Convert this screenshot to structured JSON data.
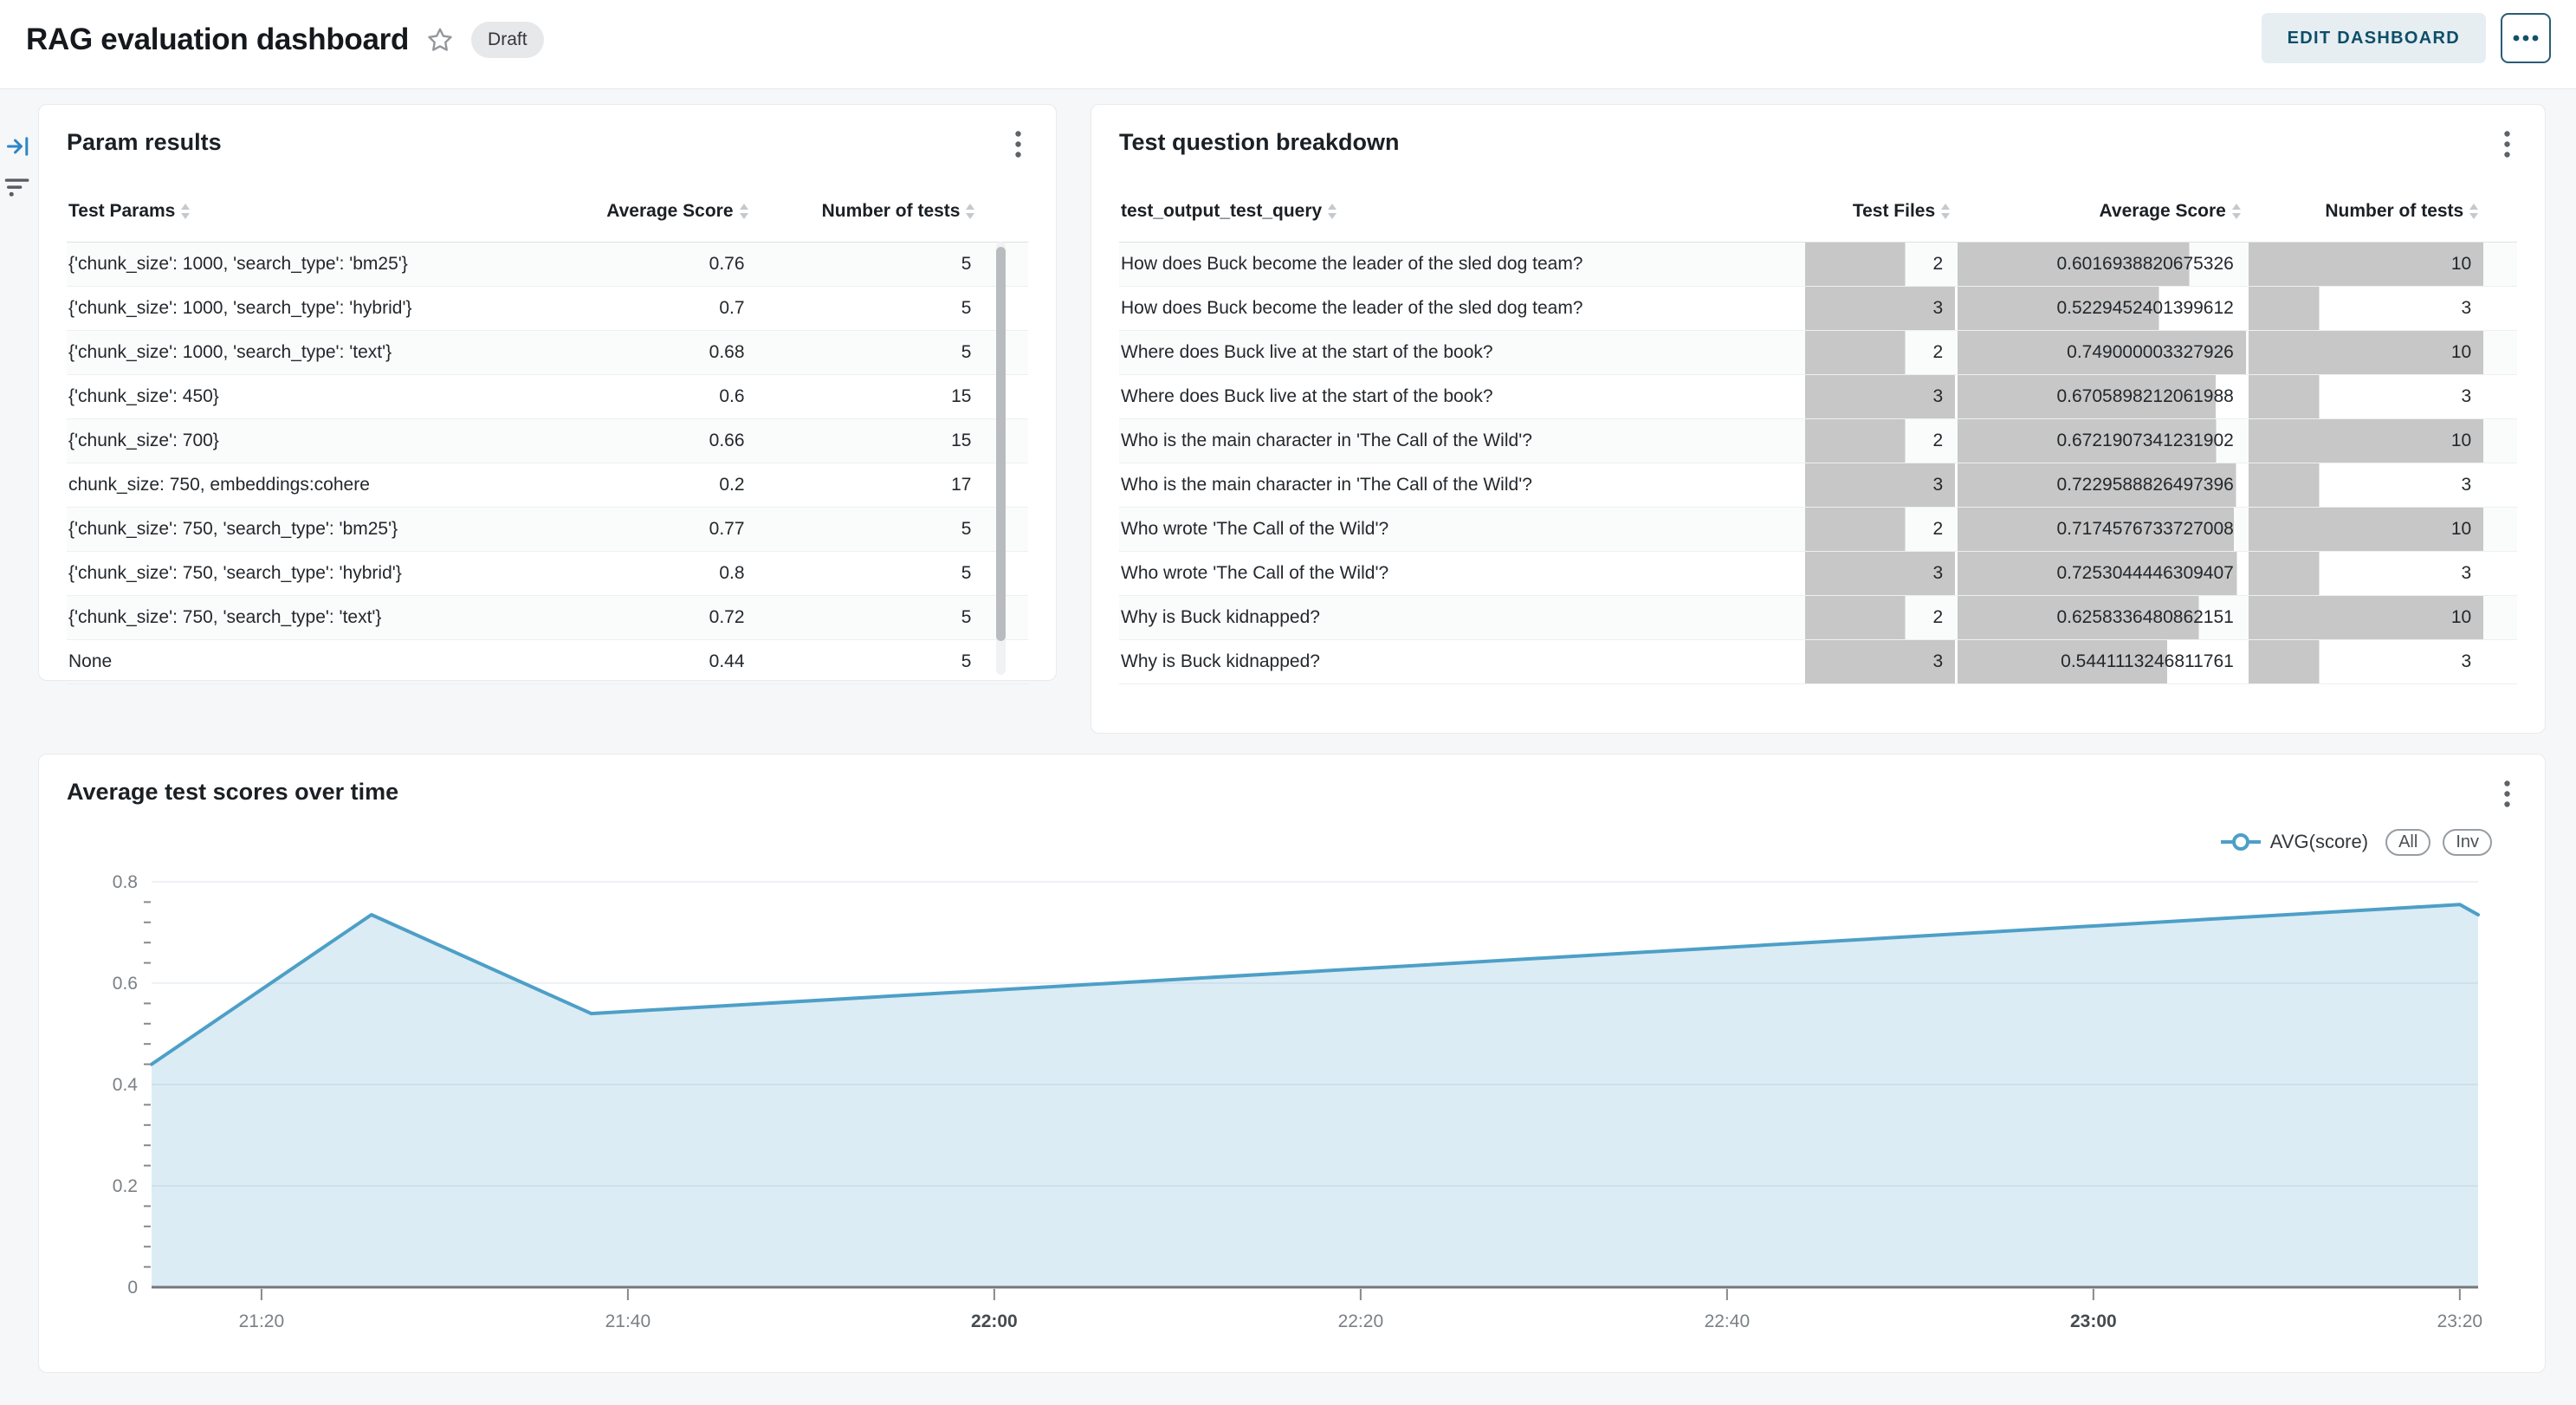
{
  "theme": {
    "accent_blue": "#4d9fc7",
    "area_fill": "rgba(77,159,199,0.2)",
    "bar_gray": "#c7c7c7",
    "button_teal": "#0e4e68",
    "page_bg": "#f6f7f8",
    "gridline": "#e8edf4"
  },
  "header": {
    "title": "RAG evaluation dashboard",
    "status_badge": "Draft",
    "edit_button": "EDIT DASHBOARD",
    "more_button_icon": "ellipsis",
    "star_icon": "star-outline"
  },
  "rail": {
    "expand_icon": "collapse-panel-arrow",
    "filter_icon": "filter-list"
  },
  "param_results": {
    "title": "Param results",
    "columns": [
      "Test Params",
      "Average Score",
      "Number of tests"
    ],
    "rows": [
      {
        "params": "{'chunk_size': 1000, 'search_type': 'bm25'}",
        "avg_score": "0.76",
        "num_tests": "5"
      },
      {
        "params": "{'chunk_size': 1000, 'search_type': 'hybrid'}",
        "avg_score": "0.7",
        "num_tests": "5"
      },
      {
        "params": "{'chunk_size': 1000, 'search_type': 'text'}",
        "avg_score": "0.68",
        "num_tests": "5"
      },
      {
        "params": "{'chunk_size': 450}",
        "avg_score": "0.6",
        "num_tests": "15"
      },
      {
        "params": "{'chunk_size': 700}",
        "avg_score": "0.66",
        "num_tests": "15"
      },
      {
        "params": "chunk_size: 750, embeddings:cohere",
        "avg_score": "0.2",
        "num_tests": "17"
      },
      {
        "params": "{'chunk_size': 750, 'search_type': 'bm25'}",
        "avg_score": "0.77",
        "num_tests": "5"
      },
      {
        "params": "{'chunk_size': 750, 'search_type': 'hybrid'}",
        "avg_score": "0.8",
        "num_tests": "5"
      },
      {
        "params": "{'chunk_size': 750, 'search_type': 'text'}",
        "avg_score": "0.72",
        "num_tests": "5"
      },
      {
        "params": "None",
        "avg_score": "0.44",
        "num_tests": "5"
      }
    ]
  },
  "question_breakdown": {
    "title": "Test question breakdown",
    "columns": [
      "test_output_test_query",
      "Test Files",
      "Average Score",
      "Number of tests"
    ],
    "rows": [
      {
        "query": "How does Buck become the leader of the sled dog team?",
        "test_files": 2,
        "avg_score": "0.6016938820675326",
        "num_tests": 10
      },
      {
        "query": "How does Buck become the leader of the sled dog team?",
        "test_files": 3,
        "avg_score": "0.5229452401399612",
        "num_tests": 3
      },
      {
        "query": "Where does Buck live at the start of the book?",
        "test_files": 2,
        "avg_score": "0.749000003327926",
        "num_tests": 10
      },
      {
        "query": "Where does Buck live at the start of the book?",
        "test_files": 3,
        "avg_score": "0.6705898212061988",
        "num_tests": 3
      },
      {
        "query": "Who is the main character in 'The Call of the Wild'?",
        "test_files": 2,
        "avg_score": "0.6721907341231902",
        "num_tests": 10
      },
      {
        "query": "Who is the main character in 'The Call of the Wild'?",
        "test_files": 3,
        "avg_score": "0.7229588826497396",
        "num_tests": 3
      },
      {
        "query": "Who wrote 'The Call of the Wild'?",
        "test_files": 2,
        "avg_score": "0.7174576733727008",
        "num_tests": 10
      },
      {
        "query": "Who wrote 'The Call of the Wild'?",
        "test_files": 3,
        "avg_score": "0.7253044446309407",
        "num_tests": 3
      },
      {
        "query": "Why is Buck kidnapped?",
        "test_files": 2,
        "avg_score": "0.6258336480862151",
        "num_tests": 10
      },
      {
        "query": "Why is Buck kidnapped?",
        "test_files": 3,
        "avg_score": "0.5441113246811761",
        "num_tests": 3
      }
    ]
  },
  "chart_data": {
    "type": "area",
    "title": "Average test scores over time",
    "series": [
      {
        "name": "AVG(score)",
        "color": "#4d9fc7"
      }
    ],
    "legend_buttons": [
      "All",
      "Inv"
    ],
    "legend_position": "top-right",
    "grid": true,
    "x_axis": {
      "start": "21:14",
      "end": "23:21",
      "ticks": [
        "21:20",
        "21:40",
        "22:00",
        "22:20",
        "22:40",
        "23:00",
        "23:20"
      ],
      "bold_ticks": [
        "22:00",
        "23:00"
      ]
    },
    "y_axis": {
      "ticks": [
        0,
        0.2,
        0.4,
        0.6,
        0.8
      ],
      "range": [
        0,
        0.84
      ],
      "minor_step": 0.04
    },
    "points": [
      {
        "time": "21:14",
        "value": 0.44
      },
      {
        "time": "21:26",
        "value": 0.735
      },
      {
        "time": "21:38",
        "value": 0.54
      },
      {
        "time": "23:20",
        "value": 0.755
      },
      {
        "time": "23:21",
        "value": 0.735
      }
    ]
  }
}
